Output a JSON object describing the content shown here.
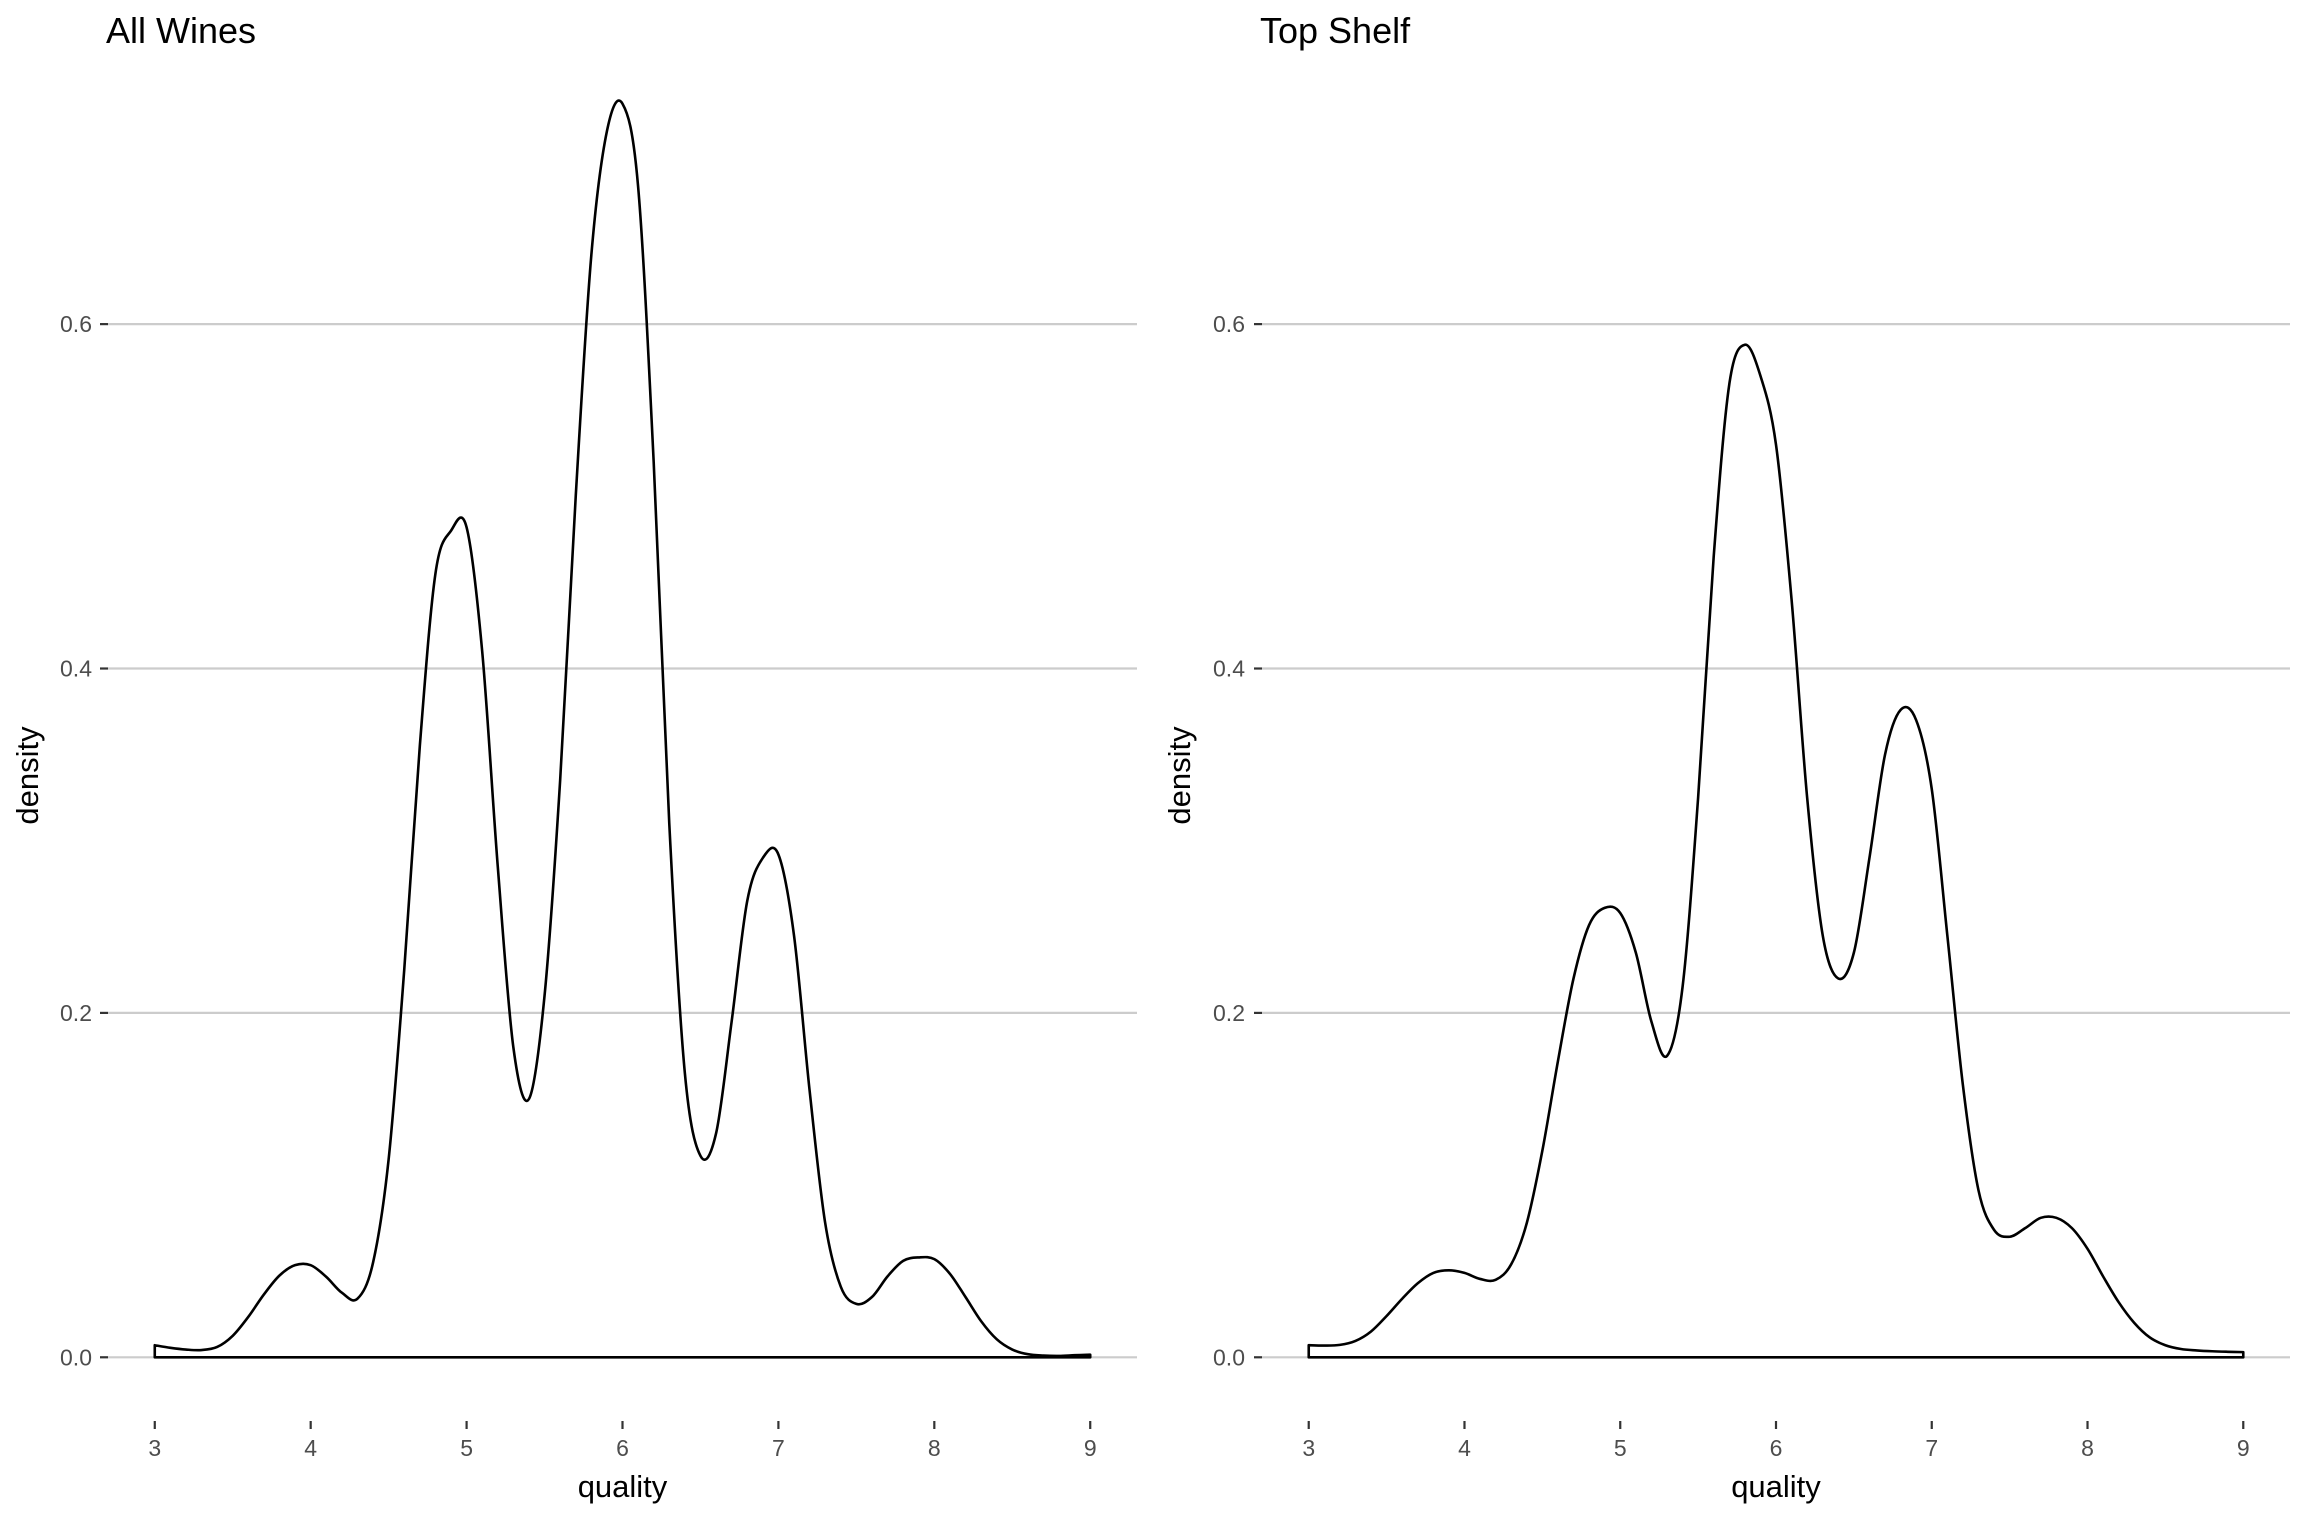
{
  "chart_data": [
    {
      "type": "area",
      "title": "All Wines",
      "xlabel": "quality",
      "ylabel": "density",
      "xlim": [
        2.7,
        9.3
      ],
      "ylim": [
        -0.037,
        0.765
      ],
      "x_ticks": [
        3,
        4,
        5,
        6,
        7,
        8,
        9
      ],
      "x_tick_labels": [
        "3",
        "4",
        "5",
        "6",
        "7",
        "8",
        "9"
      ],
      "y_ticks": [
        0.0,
        0.2,
        0.4,
        0.6
      ],
      "y_tick_labels": [
        "0.0",
        "0.2",
        "0.4",
        "0.6"
      ],
      "grid": "horizontal major only",
      "series": [
        {
          "x": [
            3.0,
            3.1,
            3.2,
            3.3,
            3.4,
            3.5,
            3.6,
            3.7,
            3.8,
            3.9,
            4.0,
            4.1,
            4.2,
            4.3,
            4.4,
            4.5,
            4.6,
            4.7,
            4.8,
            4.9,
            5.0,
            5.1,
            5.2,
            5.3,
            5.4,
            5.5,
            5.6,
            5.7,
            5.8,
            5.9,
            6.0,
            6.1,
            6.2,
            6.3,
            6.4,
            6.5,
            6.6,
            6.7,
            6.8,
            6.9,
            7.0,
            7.1,
            7.2,
            7.3,
            7.4,
            7.5,
            7.6,
            7.7,
            7.8,
            7.9,
            8.0,
            8.1,
            8.2,
            8.3,
            8.4,
            8.5,
            8.6,
            8.7,
            8.8,
            8.9,
            9.0
          ],
          "y": [
            0.007,
            0.0055,
            0.0045,
            0.0042,
            0.006,
            0.0125,
            0.0235,
            0.0365,
            0.0475,
            0.0535,
            0.0535,
            0.0467,
            0.0375,
            0.034,
            0.055,
            0.115,
            0.225,
            0.355,
            0.455,
            0.48,
            0.482,
            0.41,
            0.285,
            0.18,
            0.15,
            0.21,
            0.335,
            0.5,
            0.64,
            0.712,
            0.728,
            0.68,
            0.52,
            0.31,
            0.165,
            0.117,
            0.13,
            0.195,
            0.265,
            0.29,
            0.292,
            0.245,
            0.155,
            0.078,
            0.041,
            0.031,
            0.035,
            0.047,
            0.056,
            0.058,
            0.057,
            0.0485,
            0.035,
            0.021,
            0.0105,
            0.0045,
            0.0018,
            0.001,
            0.0008,
            0.0012,
            0.0015
          ]
        }
      ]
    },
    {
      "type": "area",
      "title": "Top Shelf",
      "xlabel": "quality",
      "ylabel": "density",
      "xlim": [
        2.7,
        9.3
      ],
      "ylim": [
        -0.037,
        0.765
      ],
      "x_ticks": [
        3,
        4,
        5,
        6,
        7,
        8,
        9
      ],
      "x_tick_labels": [
        "3",
        "4",
        "5",
        "6",
        "7",
        "8",
        "9"
      ],
      "y_ticks": [
        0.0,
        0.2,
        0.4,
        0.6
      ],
      "y_tick_labels": [
        "0.0",
        "0.2",
        "0.4",
        "0.6"
      ],
      "grid": "horizontal major only",
      "series": [
        {
          "x": [
            3.0,
            3.1,
            3.2,
            3.3,
            3.4,
            3.5,
            3.6,
            3.7,
            3.8,
            3.9,
            4.0,
            4.1,
            4.2,
            4.3,
            4.4,
            4.5,
            4.6,
            4.7,
            4.8,
            4.9,
            5.0,
            5.1,
            5.2,
            5.3,
            5.4,
            5.5,
            5.6,
            5.7,
            5.8,
            5.9,
            6.0,
            6.1,
            6.2,
            6.3,
            6.4,
            6.5,
            6.6,
            6.7,
            6.8,
            6.9,
            7.0,
            7.1,
            7.2,
            7.3,
            7.4,
            7.5,
            7.6,
            7.7,
            7.8,
            7.9,
            8.0,
            8.1,
            8.2,
            8.3,
            8.4,
            8.5,
            8.6,
            8.7,
            8.8,
            8.9,
            9.0
          ],
          "y": [
            0.007,
            0.0068,
            0.0072,
            0.0095,
            0.015,
            0.024,
            0.034,
            0.043,
            0.049,
            0.0505,
            0.049,
            0.0455,
            0.045,
            0.054,
            0.078,
            0.12,
            0.172,
            0.22,
            0.251,
            0.261,
            0.258,
            0.235,
            0.195,
            0.175,
            0.215,
            0.325,
            0.465,
            0.565,
            0.588,
            0.57,
            0.53,
            0.44,
            0.325,
            0.245,
            0.22,
            0.235,
            0.29,
            0.35,
            0.376,
            0.37,
            0.33,
            0.245,
            0.158,
            0.097,
            0.074,
            0.07,
            0.075,
            0.081,
            0.081,
            0.075,
            0.063,
            0.047,
            0.032,
            0.02,
            0.0115,
            0.007,
            0.0048,
            0.004,
            0.0035,
            0.0032,
            0.003
          ]
        }
      ]
    }
  ]
}
